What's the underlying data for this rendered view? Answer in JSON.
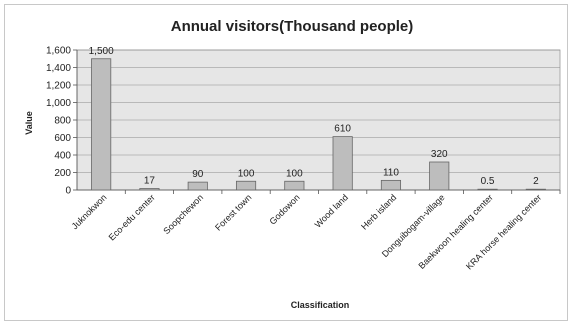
{
  "chart_data": {
    "type": "bar",
    "title": "Annual visitors(Thousand people)",
    "xlabel": "Classification",
    "ylabel": "Value",
    "ylim": [
      0,
      1600
    ],
    "yticks": [
      "0",
      "200",
      "400",
      "600",
      "800",
      "1,000",
      "1,200",
      "1,400",
      "1,600"
    ],
    "grid": true,
    "legend": "none",
    "bar_color": "#bdbdbd",
    "plot_background": "#e6e6e6",
    "categories": [
      "Juknokwon",
      "Eco-edu center",
      "Soopchewon",
      "Forest town",
      "Godowon",
      "Wood land",
      "Herb island",
      "Donguibogam-village",
      "Baekwoon healing center",
      "KRA horse healing center"
    ],
    "values": [
      1500,
      17,
      90,
      100,
      100,
      610,
      110,
      320,
      0.5,
      2
    ],
    "labels": [
      "1,500",
      "17",
      "90",
      "100",
      "100",
      "610",
      "110",
      "320",
      "0.5",
      "2"
    ]
  }
}
